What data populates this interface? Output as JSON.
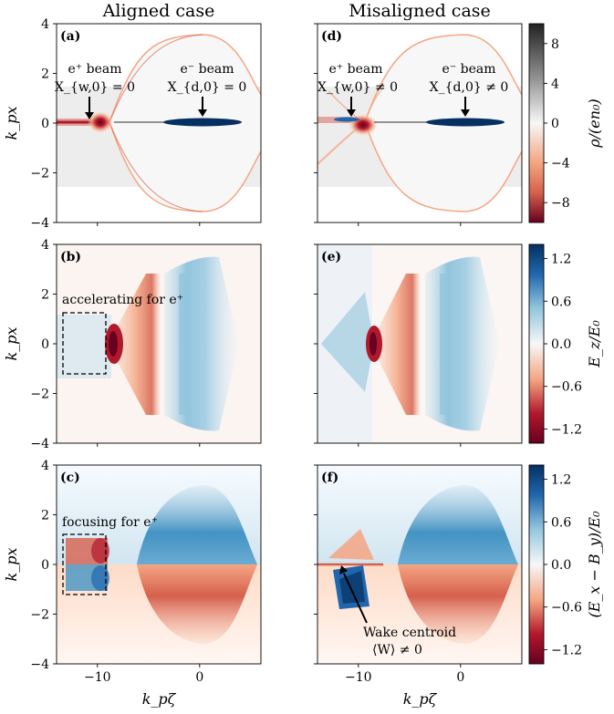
{
  "column_titles": [
    "Aligned case",
    "Misaligned case"
  ],
  "x_axis_label": "k_pζ",
  "y_axis_label": "k_px",
  "annotations": {
    "a_pos_beam": "e⁺ beam",
    "a_pos_eq": "X_{w,0} = 0",
    "a_ele_beam": "e⁻ beam",
    "a_ele_eq": "X_{d,0} = 0",
    "d_pos_beam": "e⁺ beam",
    "d_pos_eq": "X_{w,0} ≠ 0",
    "d_ele_beam": "e⁻ beam",
    "d_ele_eq": "X_{d,0} ≠ 0",
    "b_box": "accelerating for e⁺",
    "c_box": "focusing for e⁺",
    "f_line1": "Wake centroid",
    "f_line2": "⟨W⟩ ≠ 0"
  },
  "chart_data": [
    {
      "type": "heatmap",
      "panels": [
        "(a)",
        "(d)"
      ],
      "quantity": "ρ/(en₀)",
      "colorbar_label": "ρ/(en₀)",
      "colorbar_range": [
        -10,
        10
      ],
      "colorbar_ticks": [
        8,
        4,
        0,
        -4,
        -8
      ],
      "colormap": "diverging red-white-gray/blue",
      "xlim": [
        -14,
        6
      ],
      "ylim": [
        -4,
        4
      ],
      "x_ticks": [
        -10,
        0
      ],
      "y_ticks": [
        4,
        2,
        0,
        -2,
        -4
      ]
    },
    {
      "type": "heatmap",
      "panels": [
        "(b)",
        "(e)"
      ],
      "quantity": "E_z/E₀",
      "colorbar_label": "E_z/E₀",
      "colorbar_range": [
        -1.4,
        1.4
      ],
      "colorbar_ticks": [
        "1.2",
        "0.6",
        "0.0",
        "-0.6",
        "-1.2"
      ],
      "colormap": "RdBu",
      "xlim": [
        -14,
        6
      ],
      "ylim": [
        -4,
        4
      ],
      "x_ticks": [
        -10,
        0
      ],
      "y_ticks": [
        4,
        2,
        0,
        -2,
        -4
      ]
    },
    {
      "type": "heatmap",
      "panels": [
        "(c)",
        "(f)"
      ],
      "quantity": "(E_x − B_y)/E₀",
      "colorbar_label": "(E_x − B_y)/E₀",
      "colorbar_range": [
        -1.4,
        1.4
      ],
      "colorbar_ticks": [
        "1.2",
        "0.6",
        "0.0",
        "-0.6",
        "-1.2"
      ],
      "colormap": "RdBu",
      "xlim": [
        -14,
        6
      ],
      "ylim": [
        -4,
        4
      ],
      "x_ticks": [
        -10,
        0
      ],
      "y_ticks": [
        4,
        2,
        0,
        -2,
        -4
      ]
    }
  ],
  "colors": {
    "red_dark": "#67001f",
    "red": "#d6604d",
    "red_light": "#f4a582",
    "blue_dark": "#053061",
    "blue": "#4393c3",
    "blue_light": "#92c5de",
    "gray_dark": "#333333",
    "gray_light": "#e6e6e6"
  }
}
